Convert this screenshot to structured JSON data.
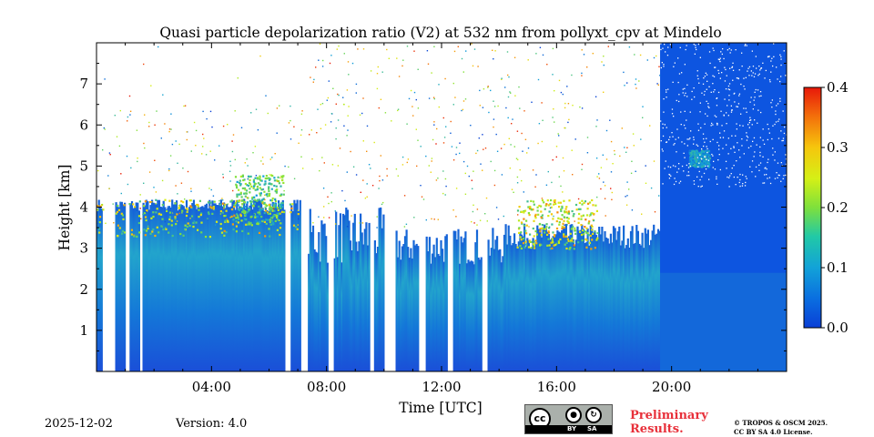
{
  "chart_data": {
    "type": "heatmap",
    "title": "Quasi particle depolarization ratio (V2) at 532 nm from pollyxt_cpv at Mindelo",
    "xlabel": "Time [UTC]",
    "ylabel": "Height [km]",
    "xlim": [
      0,
      24
    ],
    "ylim": [
      0,
      8
    ],
    "x_ticks": [
      4,
      8,
      12,
      16,
      20
    ],
    "x_tick_labels": [
      "04:00",
      "08:00",
      "12:00",
      "16:00",
      "20:00"
    ],
    "y_ticks": [
      1,
      2,
      3,
      4,
      5,
      6,
      7
    ],
    "y_tick_labels": [
      "1",
      "2",
      "3",
      "4",
      "5",
      "6",
      "7"
    ],
    "colorbar": {
      "min": 0.0,
      "max": 0.4,
      "ticks": [
        0.0,
        0.1,
        0.2,
        0.3,
        0.4
      ],
      "tick_labels": [
        "0.0",
        "0.1",
        "0.2",
        "0.3",
        "0.4"
      ],
      "colormap": "jet"
    },
    "data_gaps_hours": [
      [
        0.2,
        0.65
      ],
      [
        0.98,
        1.12
      ],
      [
        1.5,
        1.6
      ],
      [
        6.5,
        6.7
      ],
      [
        7.06,
        7.3
      ],
      [
        8.0,
        8.2
      ],
      [
        9.5,
        9.62
      ],
      [
        10.0,
        10.4
      ],
      [
        11.2,
        11.45
      ],
      [
        12.2,
        12.4
      ],
      [
        13.4,
        13.6
      ]
    ],
    "features": [
      {
        "time_range": [
          0.0,
          7.0
        ],
        "height_range": [
          3.3,
          4.2
        ],
        "depolarization": 0.3
      },
      {
        "time_range": [
          4.8,
          6.5
        ],
        "height_range": [
          3.6,
          4.8
        ],
        "depolarization": 0.2
      },
      {
        "time_range": [
          14.6,
          17.4
        ],
        "height_range": [
          3.0,
          4.2
        ],
        "depolarization": 0.3
      },
      {
        "time_range": [
          0.0,
          24.0
        ],
        "height_range": [
          0.0,
          3.0
        ],
        "depolarization": 0.05
      },
      {
        "time_range": [
          19.6,
          24.0
        ],
        "height_range": [
          0.0,
          8.0
        ],
        "depolarization": 0.03
      },
      {
        "time_range": [
          20.6,
          21.3
        ],
        "height_range": [
          5.0,
          5.4
        ],
        "depolarization": 0.12
      }
    ]
  },
  "footer": {
    "date": "2025-12-02",
    "version": "Version: 4.0",
    "license_badge": {
      "by": "BY",
      "sa": "SA",
      "cc": "cc"
    },
    "preliminary_line1": "Preliminary",
    "preliminary_line2": "Results.",
    "copyright_line1": "© TROPOS & OSCM 2025.",
    "copyright_line2": "CC BY SA 4.0 License."
  },
  "colors": {
    "jet_low": "#0a3fd6",
    "jet_high": "#e8180a",
    "preliminary": "#e8303a"
  }
}
